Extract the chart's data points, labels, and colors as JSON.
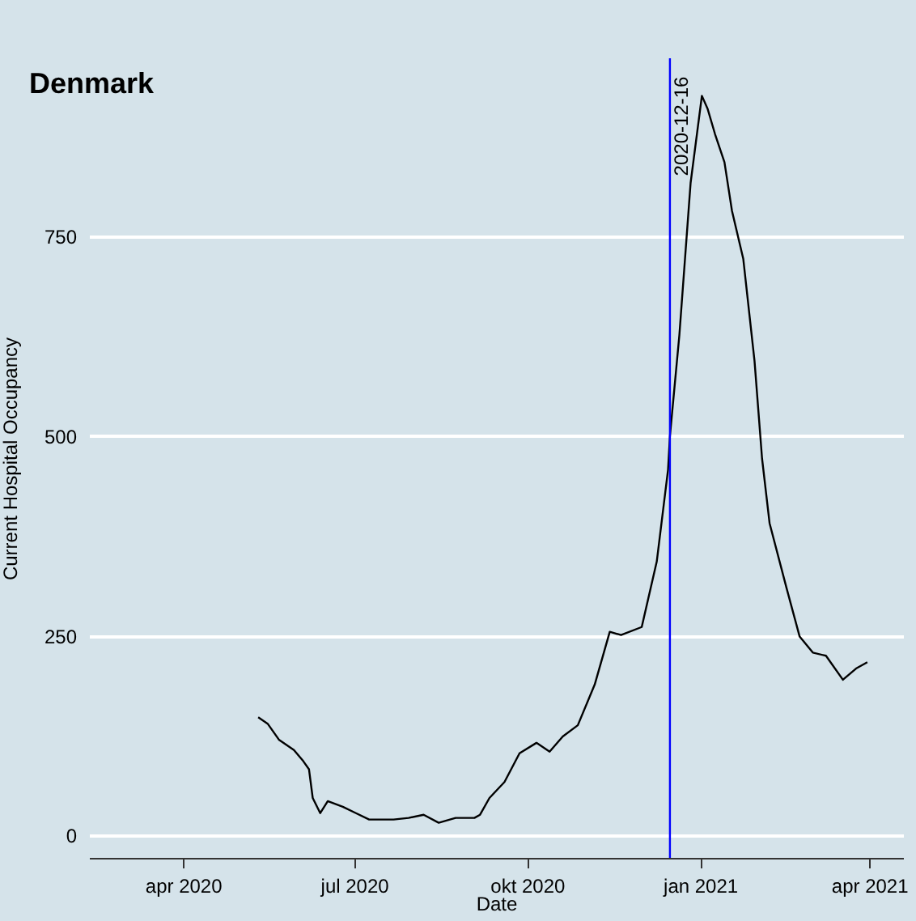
{
  "chart_data": {
    "type": "line",
    "title": "Denmark",
    "xlabel": "Date",
    "ylabel": "Current Hospital Occupancy",
    "x": [
      "2020-05-11",
      "2020-05-16",
      "2020-05-22",
      "2020-05-30",
      "2020-06-04",
      "2020-06-07",
      "2020-06-09",
      "2020-06-13",
      "2020-06-17",
      "2020-06-25",
      "2020-07-02",
      "2020-07-09",
      "2020-07-22",
      "2020-07-30",
      "2020-08-07",
      "2020-08-15",
      "2020-08-24",
      "2020-09-03",
      "2020-09-06",
      "2020-09-11",
      "2020-09-19",
      "2020-09-27",
      "2020-10-06",
      "2020-10-13",
      "2020-10-20",
      "2020-10-28",
      "2020-11-06",
      "2020-11-14",
      "2020-11-20",
      "2020-12-01",
      "2020-12-09",
      "2020-12-15",
      "2020-12-16",
      "2020-12-21",
      "2020-12-27",
      "2021-01-02",
      "2021-01-05",
      "2021-01-09",
      "2021-01-14",
      "2021-01-18",
      "2021-01-24",
      "2021-01-30",
      "2021-02-03",
      "2021-02-07",
      "2021-02-16",
      "2021-02-23",
      "2021-03-02",
      "2021-03-09",
      "2021-03-18",
      "2021-03-25",
      "2021-03-31"
    ],
    "series": [
      {
        "color": "#000000",
        "values": [
          148,
          140,
          120,
          107,
          93,
          83,
          47,
          28,
          43,
          36,
          28,
          20,
          20,
          22,
          26,
          16,
          22,
          22,
          26,
          47,
          67,
          103,
          116,
          105,
          124,
          138,
          189,
          255,
          251,
          261,
          343,
          458,
          500,
          626,
          817,
          926,
          910,
          878,
          843,
          782,
          722,
          594,
          472,
          391,
          310,
          249,
          229,
          225,
          195,
          209,
          217
        ]
      }
    ],
    "xlim": [
      "2020-02-11",
      "2021-04-19"
    ],
    "ylim": [
      -28,
      973
    ],
    "xticks": [
      {
        "value": "2020-04-01",
        "label": "apr 2020"
      },
      {
        "value": "2020-07-01",
        "label": "jul 2020"
      },
      {
        "value": "2020-10-01",
        "label": "okt 2020"
      },
      {
        "value": "2021-01-01",
        "label": "jan 2021"
      },
      {
        "value": "2021-04-01",
        "label": "apr 2021"
      }
    ],
    "yticks": [
      0,
      250,
      500,
      750
    ],
    "grid": "y",
    "ref_lines": [
      {
        "axis": "x",
        "value": "2020-12-16",
        "label": "2020-12-16",
        "color": "#0000ff"
      }
    ]
  }
}
